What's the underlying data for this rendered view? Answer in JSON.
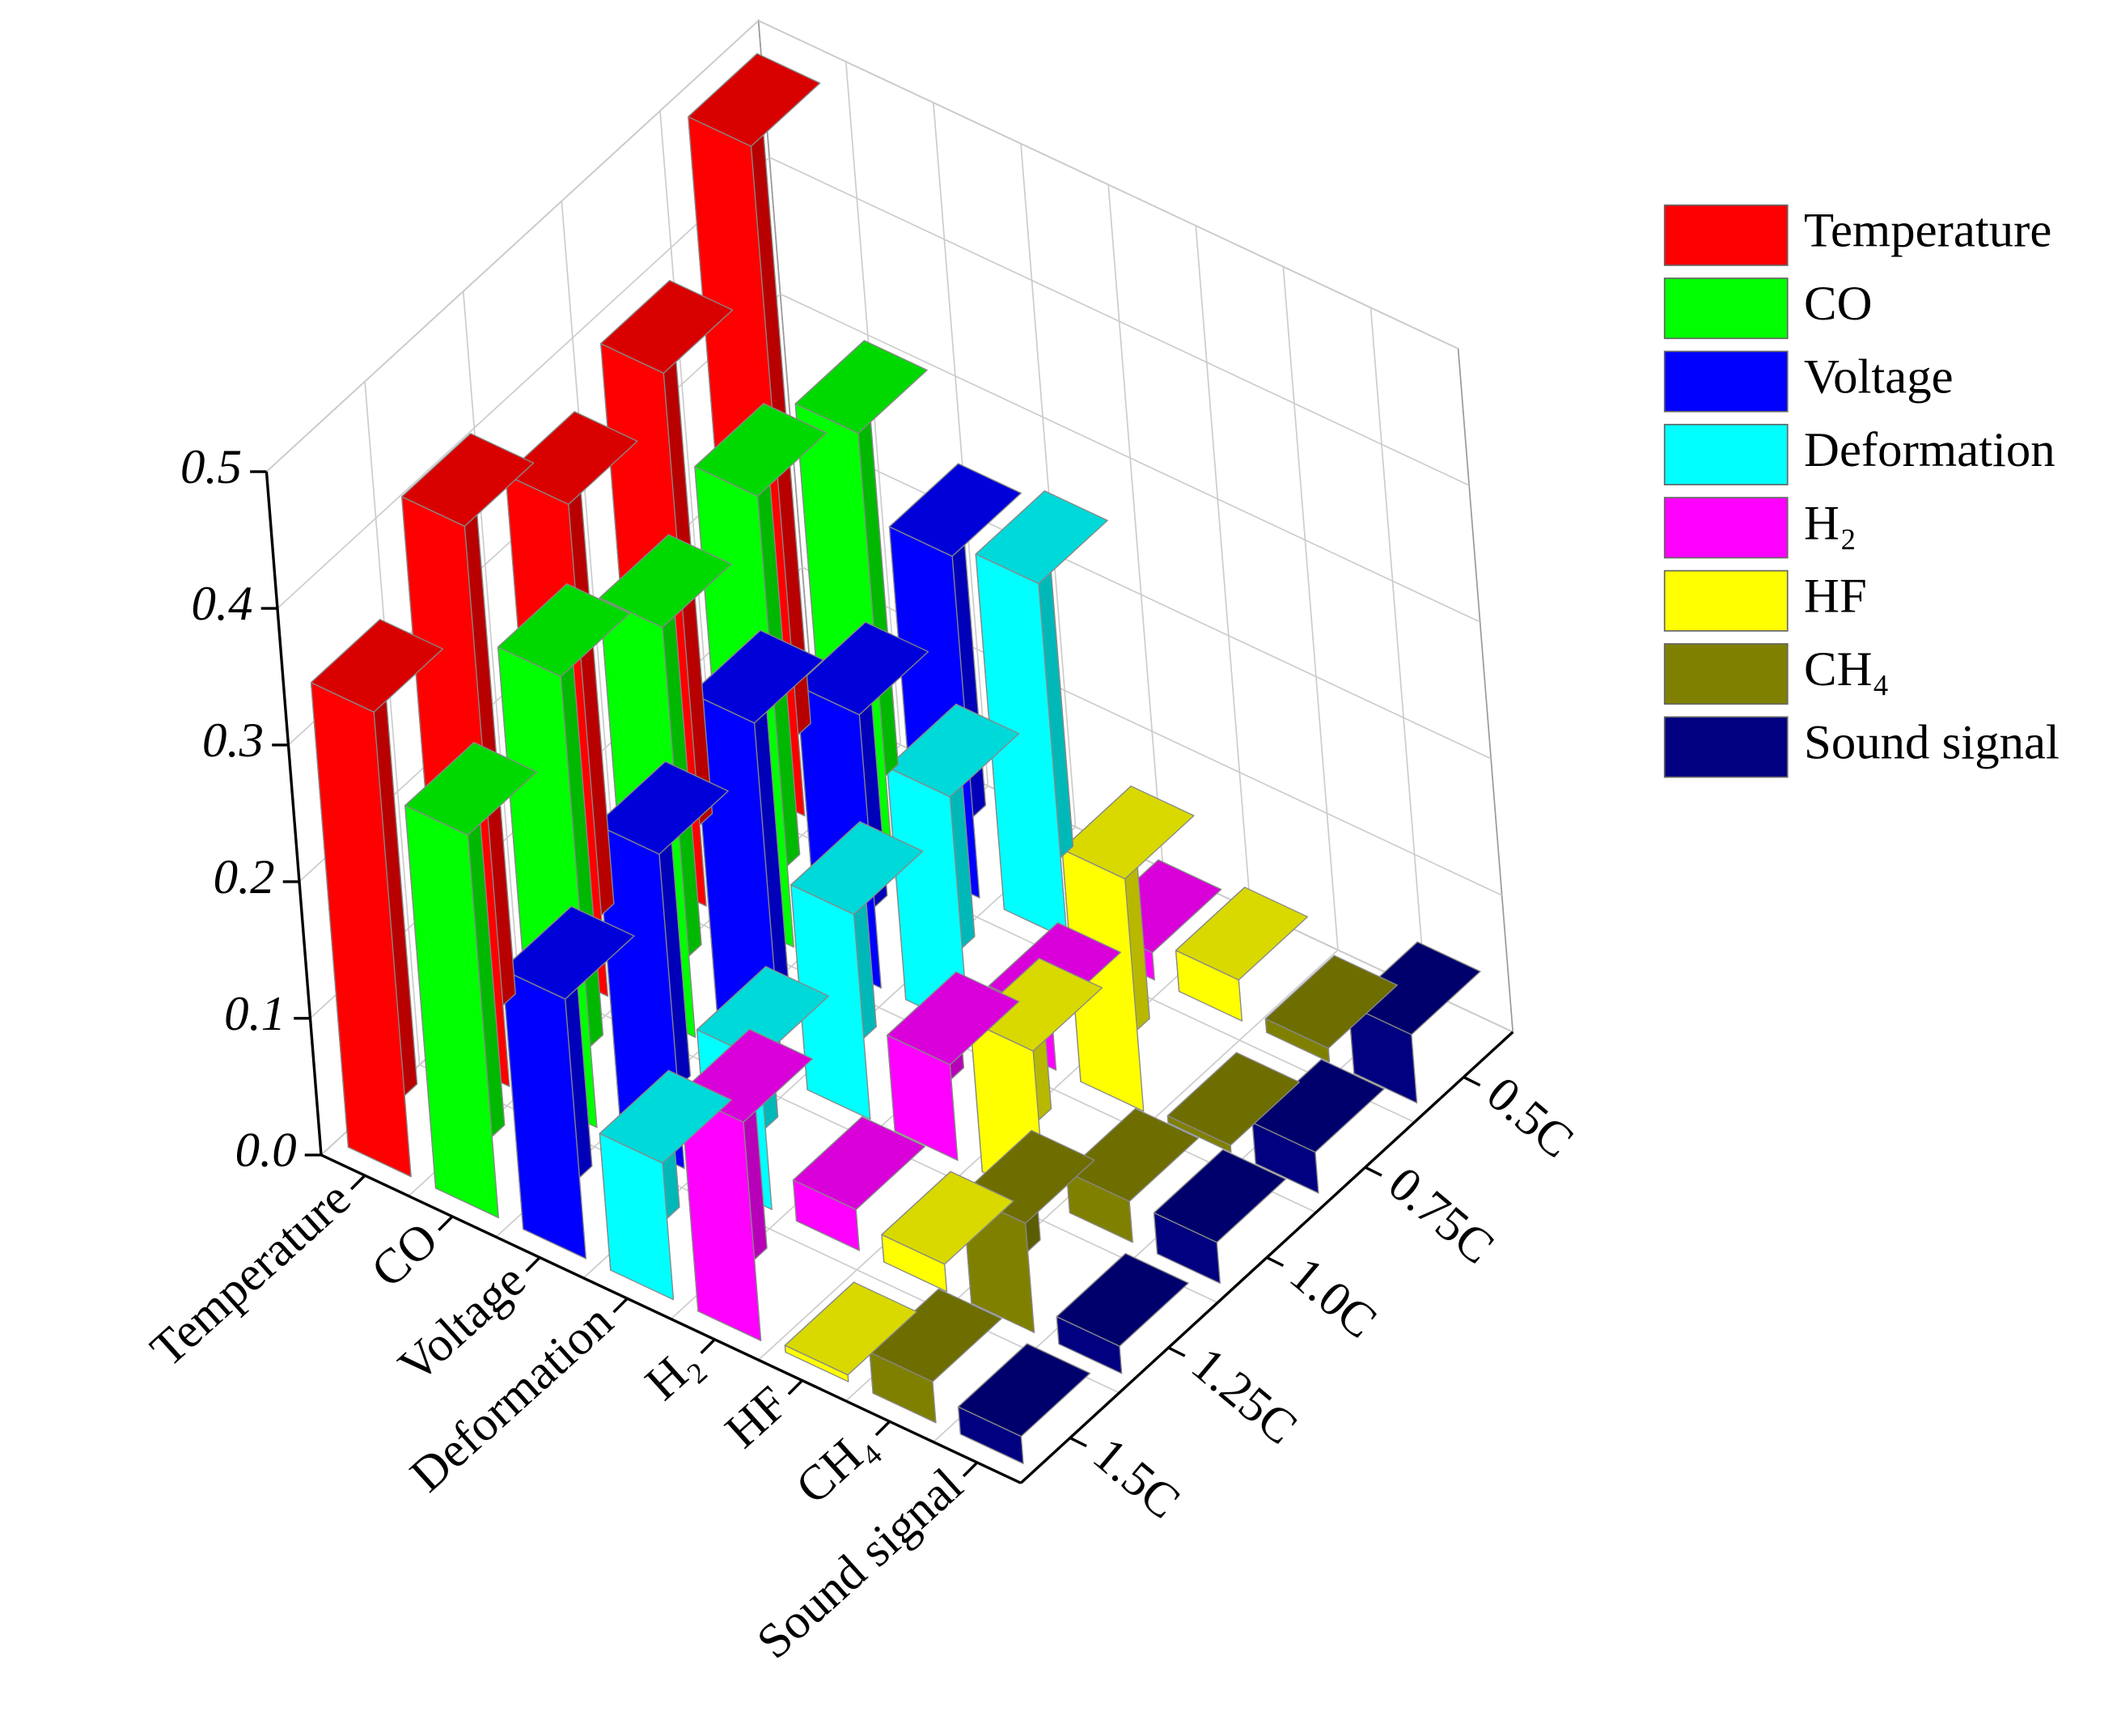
{
  "chart_data": {
    "type": "bar3d",
    "conditions": [
      "0.5C",
      "0.75C",
      "1.0C",
      "1.25C",
      "1.5C"
    ],
    "ylim": [
      0,
      0.5
    ],
    "yticks": [
      {
        "value": 0,
        "label": "0.0"
      },
      0.1,
      0.2,
      0.3,
      0.4,
      0.5
    ],
    "grid": true,
    "legend": "right",
    "series": [
      {
        "name": "Temperature",
        "color": "#ff0000",
        "values": [
          0.49,
          0.39,
          0.36,
          0.41,
          0.34
        ]
      },
      {
        "name": "CO",
        "color": "#00ff00",
        "values": [
          0.31,
          0.33,
          0.3,
          0.33,
          0.28
        ]
      },
      {
        "name": "Voltage",
        "color": "#0000ff",
        "values": [
          0.25,
          0.2,
          0.26,
          0.23,
          0.19
        ]
      },
      {
        "name": "Deformation",
        "color": "#00ffff",
        "values": [
          0.26,
          0.17,
          0.15,
          0.11,
          0.1
        ]
      },
      {
        "name": "H₂",
        "color": "#ff00ff",
        "values": [
          0.02,
          0.04,
          0.07,
          0.03,
          0.16
        ]
      },
      {
        "name": "HF",
        "color": "#ffff00",
        "values": [
          0.03,
          0.17,
          0.11,
          0.02,
          0.005
        ]
      },
      {
        "name": "CH₄",
        "color": "#808000",
        "values": [
          0.01,
          0.005,
          0.03,
          0.08,
          0.03
        ]
      },
      {
        "name": "Sound signal",
        "color": "#000080",
        "values": [
          0.05,
          0.03,
          0.03,
          0.02,
          0.02
        ]
      }
    ]
  }
}
